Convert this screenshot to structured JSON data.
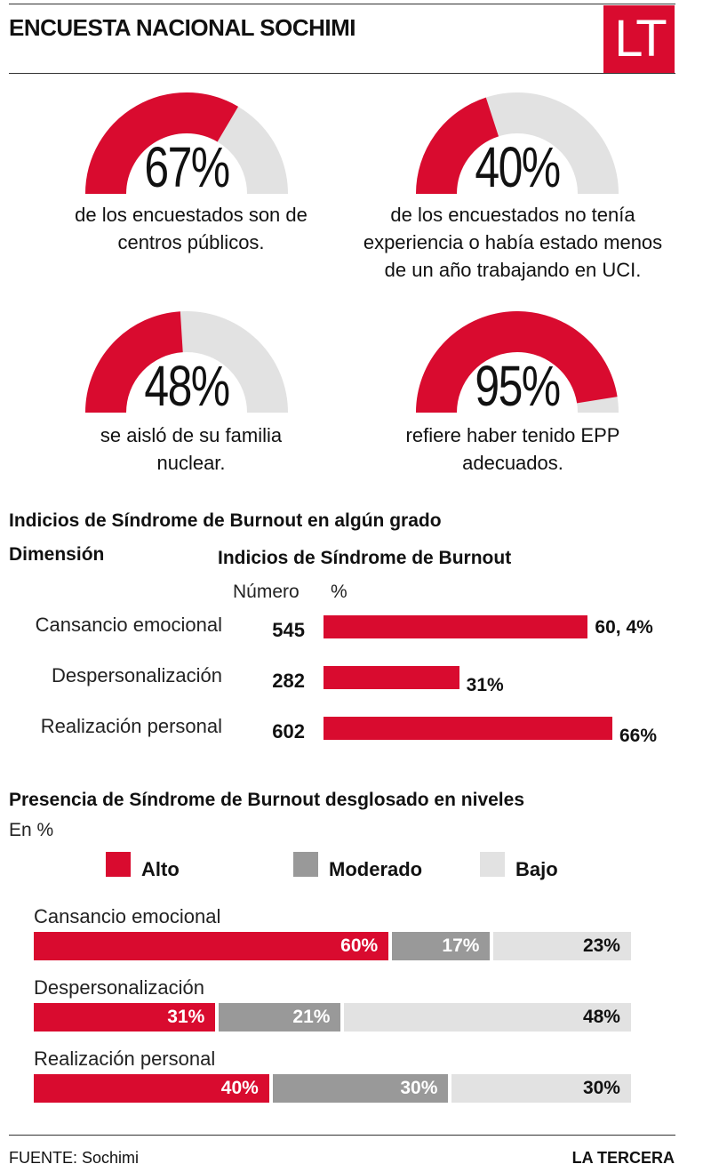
{
  "header": {
    "title": "ENCUESTA NACIONAL SOCHIMI",
    "logo": "LT"
  },
  "colors": {
    "accent": "#d90b2f",
    "moderate": "#999999",
    "low": "#e2e2e2",
    "track": "#e2e2e2"
  },
  "gauges": [
    {
      "value": 67,
      "label": "67%",
      "desc_lines": [
        "de los encuestados son de",
        "centros públicos."
      ]
    },
    {
      "value": 40,
      "label": "40%",
      "desc_lines": [
        "de los encuestados no tenía",
        "experiencia o había estado menos",
        "de un año trabajando en UCI."
      ]
    },
    {
      "value": 48,
      "label": "48%",
      "desc_lines": [
        "se aisló de su familia",
        "nuclear."
      ]
    },
    {
      "value": 95,
      "label": "95%",
      "desc_lines": [
        "refiere haber tenido EPP",
        "adecuados."
      ]
    }
  ],
  "burnout": {
    "title": "Indicios de Síndrome de Burnout en algún grado",
    "dimension_header": "Dimensión",
    "indicator_header": "Indicios de Síndrome de Burnout",
    "number_header": "Número",
    "percent_header": "%"
  },
  "levels": {
    "title": "Presencia de Síndrome de Burnout desglosado en niveles",
    "unit": "En %",
    "legend": [
      "Alto",
      "Moderado",
      "Bajo"
    ]
  },
  "chart_data": [
    {
      "type": "bar",
      "categories": [
        "Cansancio emocional",
        "Despersonalización",
        "Realización personal"
      ],
      "series": [
        {
          "name": "Número",
          "values": [
            545,
            282,
            602
          ]
        },
        {
          "name": "%",
          "values": [
            60.4,
            31,
            66
          ],
          "labels": [
            "60, 4%",
            "31%",
            "66%"
          ]
        }
      ]
    },
    {
      "type": "bar",
      "stacked": true,
      "categories": [
        "Cansancio emocional",
        "Despersonalización",
        "Realización personal"
      ],
      "series": [
        {
          "name": "Alto",
          "values": [
            60,
            31,
            40
          ]
        },
        {
          "name": "Moderado",
          "values": [
            17,
            21,
            30
          ]
        },
        {
          "name": "Bajo",
          "values": [
            23,
            48,
            30
          ]
        }
      ]
    }
  ],
  "footer": {
    "source": "FUENTE: Sochimi",
    "brand": "LA TERCERA"
  }
}
